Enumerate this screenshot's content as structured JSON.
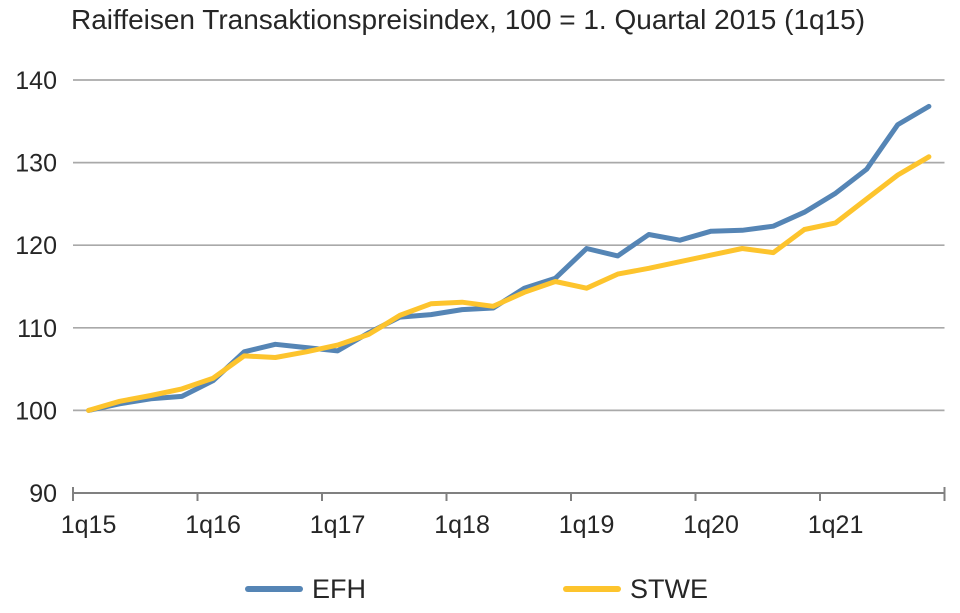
{
  "title": "Raiffeisen Transaktionspreisindex, 100 = 1. Quartal 2015 (1q15)",
  "colors": {
    "efh": "#5585b5",
    "stwe": "#fdc42d",
    "gridline": "#a9a9a9",
    "axis": "#808080",
    "text": "#262626"
  },
  "legend": {
    "efh_label": "EFH",
    "stwe_label": "STWE"
  },
  "chart_data": {
    "type": "line",
    "title": "Raiffeisen Transaktionspreisindex, 100 = 1. Quartal 2015 (1q15)",
    "categories": [
      "1q15",
      "2q15",
      "3q15",
      "4q15",
      "1q16",
      "2q16",
      "3q16",
      "4q16",
      "1q17",
      "2q17",
      "3q17",
      "4q17",
      "1q18",
      "2q18",
      "3q18",
      "4q18",
      "1q19",
      "2q19",
      "3q19",
      "4q19",
      "1q20",
      "2q20",
      "3q20",
      "4q20",
      "1q21",
      "2q21",
      "3q21",
      "4q21"
    ],
    "series": [
      {
        "name": "EFH",
        "color": "#5585b5",
        "values": [
          100.0,
          100.8,
          101.4,
          101.7,
          103.6,
          107.1,
          108.0,
          107.6,
          107.2,
          109.4,
          111.3,
          111.6,
          112.2,
          112.4,
          114.8,
          116.0,
          119.6,
          118.7,
          121.3,
          120.6,
          121.7,
          121.8,
          122.3,
          124.0,
          126.3,
          129.2,
          134.6,
          136.8
        ]
      },
      {
        "name": "STWE",
        "color": "#fdc42d",
        "values": [
          100.0,
          101.1,
          101.8,
          102.6,
          103.9,
          106.6,
          106.4,
          107.1,
          107.9,
          109.2,
          111.5,
          112.9,
          113.1,
          112.6,
          114.3,
          115.6,
          114.8,
          116.5,
          117.2,
          118.0,
          118.8,
          119.6,
          119.1,
          121.9,
          122.7,
          125.6,
          128.5,
          130.7
        ]
      }
    ],
    "xlabel": "",
    "ylabel": "",
    "ylim": [
      90,
      140
    ],
    "yticks": [
      90,
      100,
      110,
      120,
      130,
      140
    ],
    "xtick_labels": [
      "1q15",
      "1q16",
      "1q17",
      "1q18",
      "1q19",
      "1q20",
      "1q21"
    ],
    "grid": "horizontal",
    "legend_position": "bottom"
  }
}
